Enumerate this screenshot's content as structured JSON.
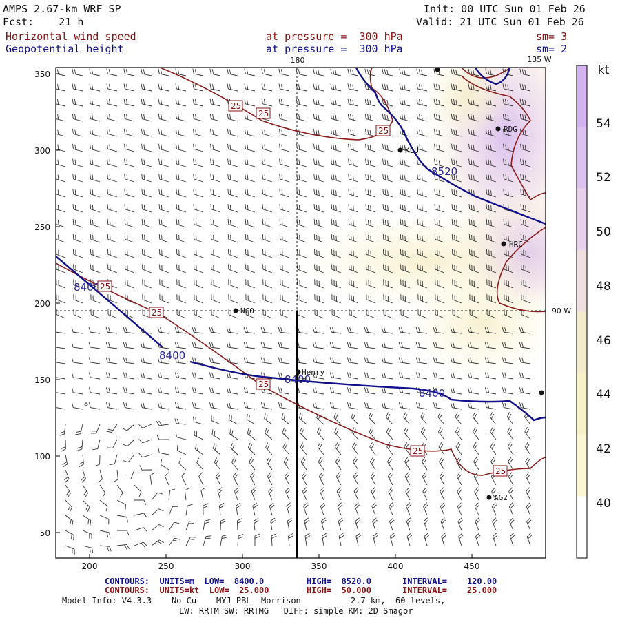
{
  "header": {
    "model": "AMPS 2.67-km WRF SP",
    "init": "Init: 00 UTC Sun 01 Feb 26",
    "fcst": "Fcst:    21 h",
    "valid": "Valid: 21 UTC Sun 01 Feb 26",
    "field1": "Horizontal wind speed",
    "field1_level": "at pressure =  300 hPa",
    "field1_smooth": "sm= 3",
    "field2": "Geopotential height",
    "field2_level": "at pressure =  300 hPa",
    "field2_smooth": "sm= 2"
  },
  "map": {
    "x_ticks": [
      "200",
      "250",
      "300",
      "350",
      "400",
      "450"
    ],
    "y_ticks": [
      "350",
      "300",
      "250",
      "200",
      "150",
      "100",
      "50"
    ],
    "lon_labels": {
      "top_left": "180",
      "top_right": "135 W",
      "right": "90 W"
    },
    "stations": [
      "RDG",
      "KLU",
      "HRC",
      "NCO",
      "Henry",
      "AG2"
    ],
    "height_labels": [
      "8400",
      "8400",
      "8400",
      "8400",
      "8520"
    ],
    "speed_labels": [
      "25",
      "25",
      "25",
      "25",
      "25",
      "25",
      "25",
      "25"
    ],
    "wind_barbs": "wind barbs over domain"
  },
  "colorbar": {
    "unit": "kt",
    "labels": [
      "54",
      "52",
      "50",
      "48",
      "46",
      "44",
      "42",
      "40"
    ],
    "colors": [
      "#ffffff",
      "#fbf7d6",
      "#f8f1c8",
      "#f4ebcf",
      "#efdfdf",
      "#e6d0ea",
      "#dcc2ee",
      "#d3b3ee"
    ]
  },
  "footer": {
    "line1_a": "CONTOURS:  UNITS=m  LOW=  8400.0",
    "line1_b": "HIGH=  8520.0",
    "line1_c": "INTERVAL=    120.00",
    "line2_a": "CONTOURS:  UNITS=kt  LOW=  25.000",
    "line2_b": "HIGH=  50.000",
    "line2_c": "INTERVAL=    25.000",
    "line3": "Model Info: V4.3.3    No Cu    MYJ PBL  Morrison          2.7 km,  60 levels,",
    "line4": "LW: RRTM SW: RRTMG   DIFF: simple KM: 2D Smagor"
  }
}
